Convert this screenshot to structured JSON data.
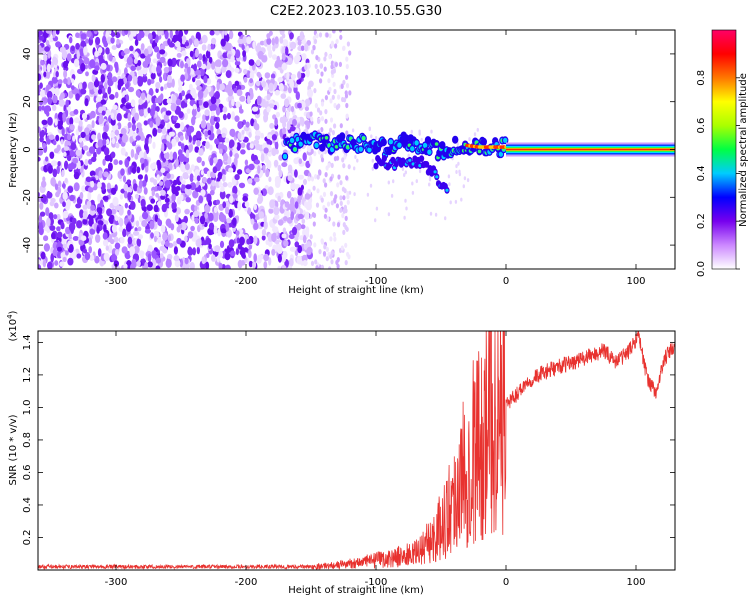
{
  "title": "C2E2.2023.103.10.55.G30",
  "chart_data": [
    {
      "type": "heatmap",
      "xlabel": "Height of straight line (km)",
      "ylabel": "Frequency (Hz)",
      "xlim": [
        -360,
        130
      ],
      "ylim": [
        -50,
        50
      ],
      "xticks": [
        -300,
        -200,
        -100,
        0,
        100
      ],
      "yticks": [
        -40,
        -20,
        0,
        20,
        40
      ],
      "x_tick_labels": [
        "-300",
        "-200",
        "-100",
        "0",
        "100"
      ],
      "y_tick_labels": [
        "-40",
        "-20",
        "0",
        "20",
        "40"
      ],
      "colorbar": {
        "label": "Normalized spectral amplitude",
        "range": [
          0,
          1
        ],
        "ticks": [
          0.0,
          0.2,
          0.4,
          0.6,
          0.8
        ],
        "tick_labels": [
          "0.0",
          "0.2",
          "0.4",
          "0.6",
          "0.8"
        ],
        "colors": [
          "#ffffff",
          "#cc88ff",
          "#7700ee",
          "#0000ff",
          "#00ccff",
          "#00ff44",
          "#aaff00",
          "#ffff00",
          "#ff7700",
          "#ff0000",
          "#ff0066"
        ]
      },
      "features": {
        "noise_region_x": [
          -360,
          -150
        ],
        "sparse_region_x": [
          -150,
          -120
        ],
        "signal_track": [
          {
            "x": -170,
            "y": 0
          },
          {
            "x": -155,
            "y": 5
          },
          {
            "x": -140,
            "y": 2
          },
          {
            "x": -120,
            "y": 3
          },
          {
            "x": -100,
            "y": 2
          },
          {
            "x": -90,
            "y": 0
          },
          {
            "x": -80,
            "y": 4
          },
          {
            "x": -65,
            "y": 2
          },
          {
            "x": -50,
            "y": -1
          },
          {
            "x": -35,
            "y": 2
          },
          {
            "x": -20,
            "y": 1
          },
          {
            "x": 0,
            "y": 1
          }
        ],
        "branch_track": [
          {
            "x": -100,
            "y": -5
          },
          {
            "x": -80,
            "y": -6
          },
          {
            "x": -65,
            "y": -5
          },
          {
            "x": -55,
            "y": -10
          },
          {
            "x": -45,
            "y": -18
          }
        ],
        "constant_line_x": [
          0,
          130
        ],
        "constant_line_y": 0
      }
    },
    {
      "type": "line",
      "xlabel": "Height of straight line (km)",
      "ylabel": "SNR (10 * v/v)",
      "y_multiplier": "(x10^4)",
      "xlim": [
        -360,
        130
      ],
      "ylim": [
        0,
        1.47
      ],
      "xticks": [
        -300,
        -200,
        -100,
        0,
        100
      ],
      "yticks": [
        0.2,
        0.4,
        0.6,
        0.8,
        1.0,
        1.2,
        1.4
      ],
      "x_tick_labels": [
        "-300",
        "-200",
        "-100",
        "0",
        "100"
      ],
      "y_tick_labels": [
        "0.2",
        "0.4",
        "0.6",
        "0.8",
        "1.0",
        "1.2",
        "1.4"
      ],
      "series": [
        {
          "color": "#e8322f",
          "x": [
            -360,
            -300,
            -250,
            -200,
            -150,
            -130,
            -110,
            -90,
            -70,
            -55,
            -45,
            -35,
            -25,
            -15,
            -5,
            5,
            15,
            25,
            40,
            60,
            75,
            85,
            95,
            102,
            108,
            115,
            122,
            130
          ],
          "y": [
            0.02,
            0.02,
            0.02,
            0.02,
            0.02,
            0.03,
            0.05,
            0.07,
            0.1,
            0.2,
            0.35,
            0.55,
            0.75,
            0.85,
            1.0,
            1.05,
            1.15,
            1.2,
            1.25,
            1.3,
            1.35,
            1.28,
            1.35,
            1.45,
            1.2,
            1.08,
            1.3,
            1.38
          ]
        }
      ]
    }
  ]
}
